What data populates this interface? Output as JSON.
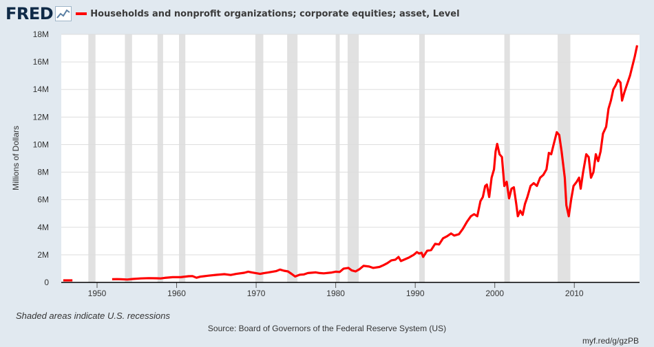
{
  "header": {
    "logo_text": "FRED",
    "logo_icon": "line-graph-icon",
    "series_title": "Households and nonprofit organizations; corporate equities; asset, Level",
    "series_color": "#ff0000"
  },
  "footer": {
    "recession_note": "Shaded areas indicate U.S. recessions",
    "source": "Source: Board of Governors of the Federal Reserve System (US)",
    "url": "myf.red/g/gzPB"
  },
  "colors": {
    "background": "#e1e9f0",
    "plot_background": "#ffffff",
    "recession_shade": "#e1e1e1",
    "gridline": "#dddddd",
    "series": "#ff0000"
  },
  "chart_data": {
    "type": "line",
    "title": "Households and nonprofit organizations; corporate equities; asset, Level",
    "ylabel": "Millions of Dollars",
    "xlabel": "",
    "xlim": [
      1945.5,
      2018.2
    ],
    "ylim": [
      0,
      18000000
    ],
    "x_ticks": [
      1950,
      1960,
      1970,
      1980,
      1990,
      2000,
      2010
    ],
    "y_ticks": [
      {
        "value": 0,
        "label": "0"
      },
      {
        "value": 2000000,
        "label": "2M"
      },
      {
        "value": 4000000,
        "label": "4M"
      },
      {
        "value": 6000000,
        "label": "6M"
      },
      {
        "value": 8000000,
        "label": "8M"
      },
      {
        "value": 10000000,
        "label": "10M"
      },
      {
        "value": 12000000,
        "label": "12M"
      },
      {
        "value": 14000000,
        "label": "14M"
      },
      {
        "value": 16000000,
        "label": "16M"
      },
      {
        "value": 18000000,
        "label": "18M"
      }
    ],
    "grid": true,
    "recessions": [
      [
        1948.9,
        1949.8
      ],
      [
        1953.5,
        1954.4
      ],
      [
        1957.6,
        1958.3
      ],
      [
        1960.3,
        1961.1
      ],
      [
        1969.9,
        1970.9
      ],
      [
        1973.9,
        1975.2
      ],
      [
        1980.0,
        1980.5
      ],
      [
        1981.5,
        1982.9
      ],
      [
        1990.5,
        1991.2
      ],
      [
        2001.2,
        2001.9
      ],
      [
        2007.9,
        2009.5
      ]
    ],
    "series": [
      {
        "name": "Households and nonprofit organizations; corporate equities; asset, Level",
        "color": "#ff0000",
        "segments": [
          [
            [
              1945.75,
              150000
            ],
            [
              1946.9,
              150000
            ]
          ],
          [
            [
              1951.9,
              230000
            ],
            [
              1952.5,
              240000
            ],
            [
              1953.0,
              230000
            ],
            [
              1953.8,
              210000
            ],
            [
              1954.5,
              250000
            ],
            [
              1955.5,
              290000
            ],
            [
              1956.5,
              310000
            ],
            [
              1957.5,
              300000
            ],
            [
              1958.0,
              290000
            ],
            [
              1958.5,
              330000
            ],
            [
              1959.5,
              380000
            ],
            [
              1960.5,
              380000
            ],
            [
              1961.5,
              450000
            ],
            [
              1962.0,
              460000
            ],
            [
              1962.5,
              340000
            ],
            [
              1963.0,
              420000
            ],
            [
              1964.0,
              490000
            ],
            [
              1965.0,
              550000
            ],
            [
              1966.0,
              600000
            ],
            [
              1966.8,
              540000
            ],
            [
              1967.5,
              620000
            ],
            [
              1968.5,
              700000
            ],
            [
              1969.0,
              780000
            ],
            [
              1969.5,
              720000
            ],
            [
              1970.5,
              620000
            ],
            [
              1971.0,
              680000
            ],
            [
              1971.5,
              720000
            ],
            [
              1972.5,
              820000
            ],
            [
              1973.0,
              930000
            ],
            [
              1973.5,
              850000
            ],
            [
              1974.0,
              800000
            ],
            [
              1974.5,
              600000
            ],
            [
              1974.9,
              430000
            ],
            [
              1975.5,
              560000
            ],
            [
              1976.0,
              580000
            ],
            [
              1976.5,
              680000
            ],
            [
              1977.5,
              730000
            ],
            [
              1978.0,
              680000
            ],
            [
              1978.5,
              660000
            ],
            [
              1979.5,
              720000
            ],
            [
              1980.0,
              780000
            ],
            [
              1980.5,
              760000
            ],
            [
              1981.0,
              1000000
            ],
            [
              1981.6,
              1050000
            ],
            [
              1982.0,
              880000
            ],
            [
              1982.5,
              800000
            ],
            [
              1983.0,
              960000
            ],
            [
              1983.5,
              1200000
            ],
            [
              1984.2,
              1150000
            ],
            [
              1984.7,
              1050000
            ],
            [
              1985.5,
              1120000
            ],
            [
              1986.0,
              1250000
            ],
            [
              1986.5,
              1400000
            ],
            [
              1987.0,
              1600000
            ],
            [
              1987.5,
              1650000
            ],
            [
              1987.9,
              1850000
            ],
            [
              1988.2,
              1550000
            ],
            [
              1988.6,
              1650000
            ],
            [
              1989.2,
              1800000
            ],
            [
              1989.8,
              2000000
            ],
            [
              1990.2,
              2200000
            ],
            [
              1990.5,
              2100000
            ],
            [
              1990.8,
              2150000
            ],
            [
              1991.0,
              1850000
            ],
            [
              1991.5,
              2300000
            ],
            [
              1992.0,
              2350000
            ],
            [
              1992.5,
              2800000
            ],
            [
              1993.0,
              2750000
            ],
            [
              1993.5,
              3200000
            ],
            [
              1994.0,
              3350000
            ],
            [
              1994.5,
              3550000
            ],
            [
              1994.9,
              3400000
            ],
            [
              1995.5,
              3500000
            ],
            [
              1996.0,
              3900000
            ],
            [
              1996.5,
              4400000
            ],
            [
              1997.0,
              4800000
            ],
            [
              1997.4,
              4950000
            ],
            [
              1997.8,
              4800000
            ],
            [
              1998.2,
              5900000
            ],
            [
              1998.5,
              6200000
            ],
            [
              1998.8,
              7000000
            ],
            [
              1999.0,
              7100000
            ],
            [
              1999.3,
              6200000
            ],
            [
              1999.6,
              7600000
            ],
            [
              1999.9,
              8200000
            ],
            [
              2000.1,
              9500000
            ],
            [
              2000.3,
              10050000
            ],
            [
              2000.6,
              9300000
            ],
            [
              2000.9,
              9100000
            ],
            [
              2001.2,
              7000000
            ],
            [
              2001.5,
              7300000
            ],
            [
              2001.8,
              6100000
            ],
            [
              2002.1,
              6800000
            ],
            [
              2002.4,
              6900000
            ],
            [
              2002.7,
              5700000
            ],
            [
              2002.9,
              4800000
            ],
            [
              2003.2,
              5200000
            ],
            [
              2003.5,
              4900000
            ],
            [
              2003.8,
              5700000
            ],
            [
              2004.1,
              6200000
            ],
            [
              2004.5,
              7000000
            ],
            [
              2004.9,
              7200000
            ],
            [
              2005.3,
              7000000
            ],
            [
              2005.7,
              7600000
            ],
            [
              2006.1,
              7800000
            ],
            [
              2006.5,
              8200000
            ],
            [
              2006.8,
              9400000
            ],
            [
              2007.1,
              9300000
            ],
            [
              2007.4,
              10000000
            ],
            [
              2007.8,
              10900000
            ],
            [
              2008.1,
              10700000
            ],
            [
              2008.4,
              9500000
            ],
            [
              2008.8,
              7600000
            ],
            [
              2009.0,
              5600000
            ],
            [
              2009.3,
              4800000
            ],
            [
              2009.6,
              6000000
            ],
            [
              2009.9,
              7000000
            ],
            [
              2010.3,
              7300000
            ],
            [
              2010.6,
              7600000
            ],
            [
              2010.8,
              6800000
            ],
            [
              2011.1,
              8000000
            ],
            [
              2011.5,
              9300000
            ],
            [
              2011.8,
              9100000
            ],
            [
              2012.1,
              7600000
            ],
            [
              2012.4,
              8000000
            ],
            [
              2012.7,
              9300000
            ],
            [
              2013.0,
              8800000
            ],
            [
              2013.3,
              9500000
            ],
            [
              2013.6,
              10800000
            ],
            [
              2014.0,
              11300000
            ],
            [
              2014.3,
              12600000
            ],
            [
              2014.6,
              13200000
            ],
            [
              2014.9,
              14000000
            ],
            [
              2015.2,
              14300000
            ],
            [
              2015.5,
              14700000
            ],
            [
              2015.8,
              14500000
            ],
            [
              2016.0,
              13200000
            ],
            [
              2016.3,
              13800000
            ],
            [
              2016.7,
              14500000
            ],
            [
              2017.0,
              15000000
            ],
            [
              2017.3,
              15700000
            ],
            [
              2017.6,
              16400000
            ],
            [
              2017.9,
              17200000
            ]
          ]
        ]
      }
    ]
  }
}
